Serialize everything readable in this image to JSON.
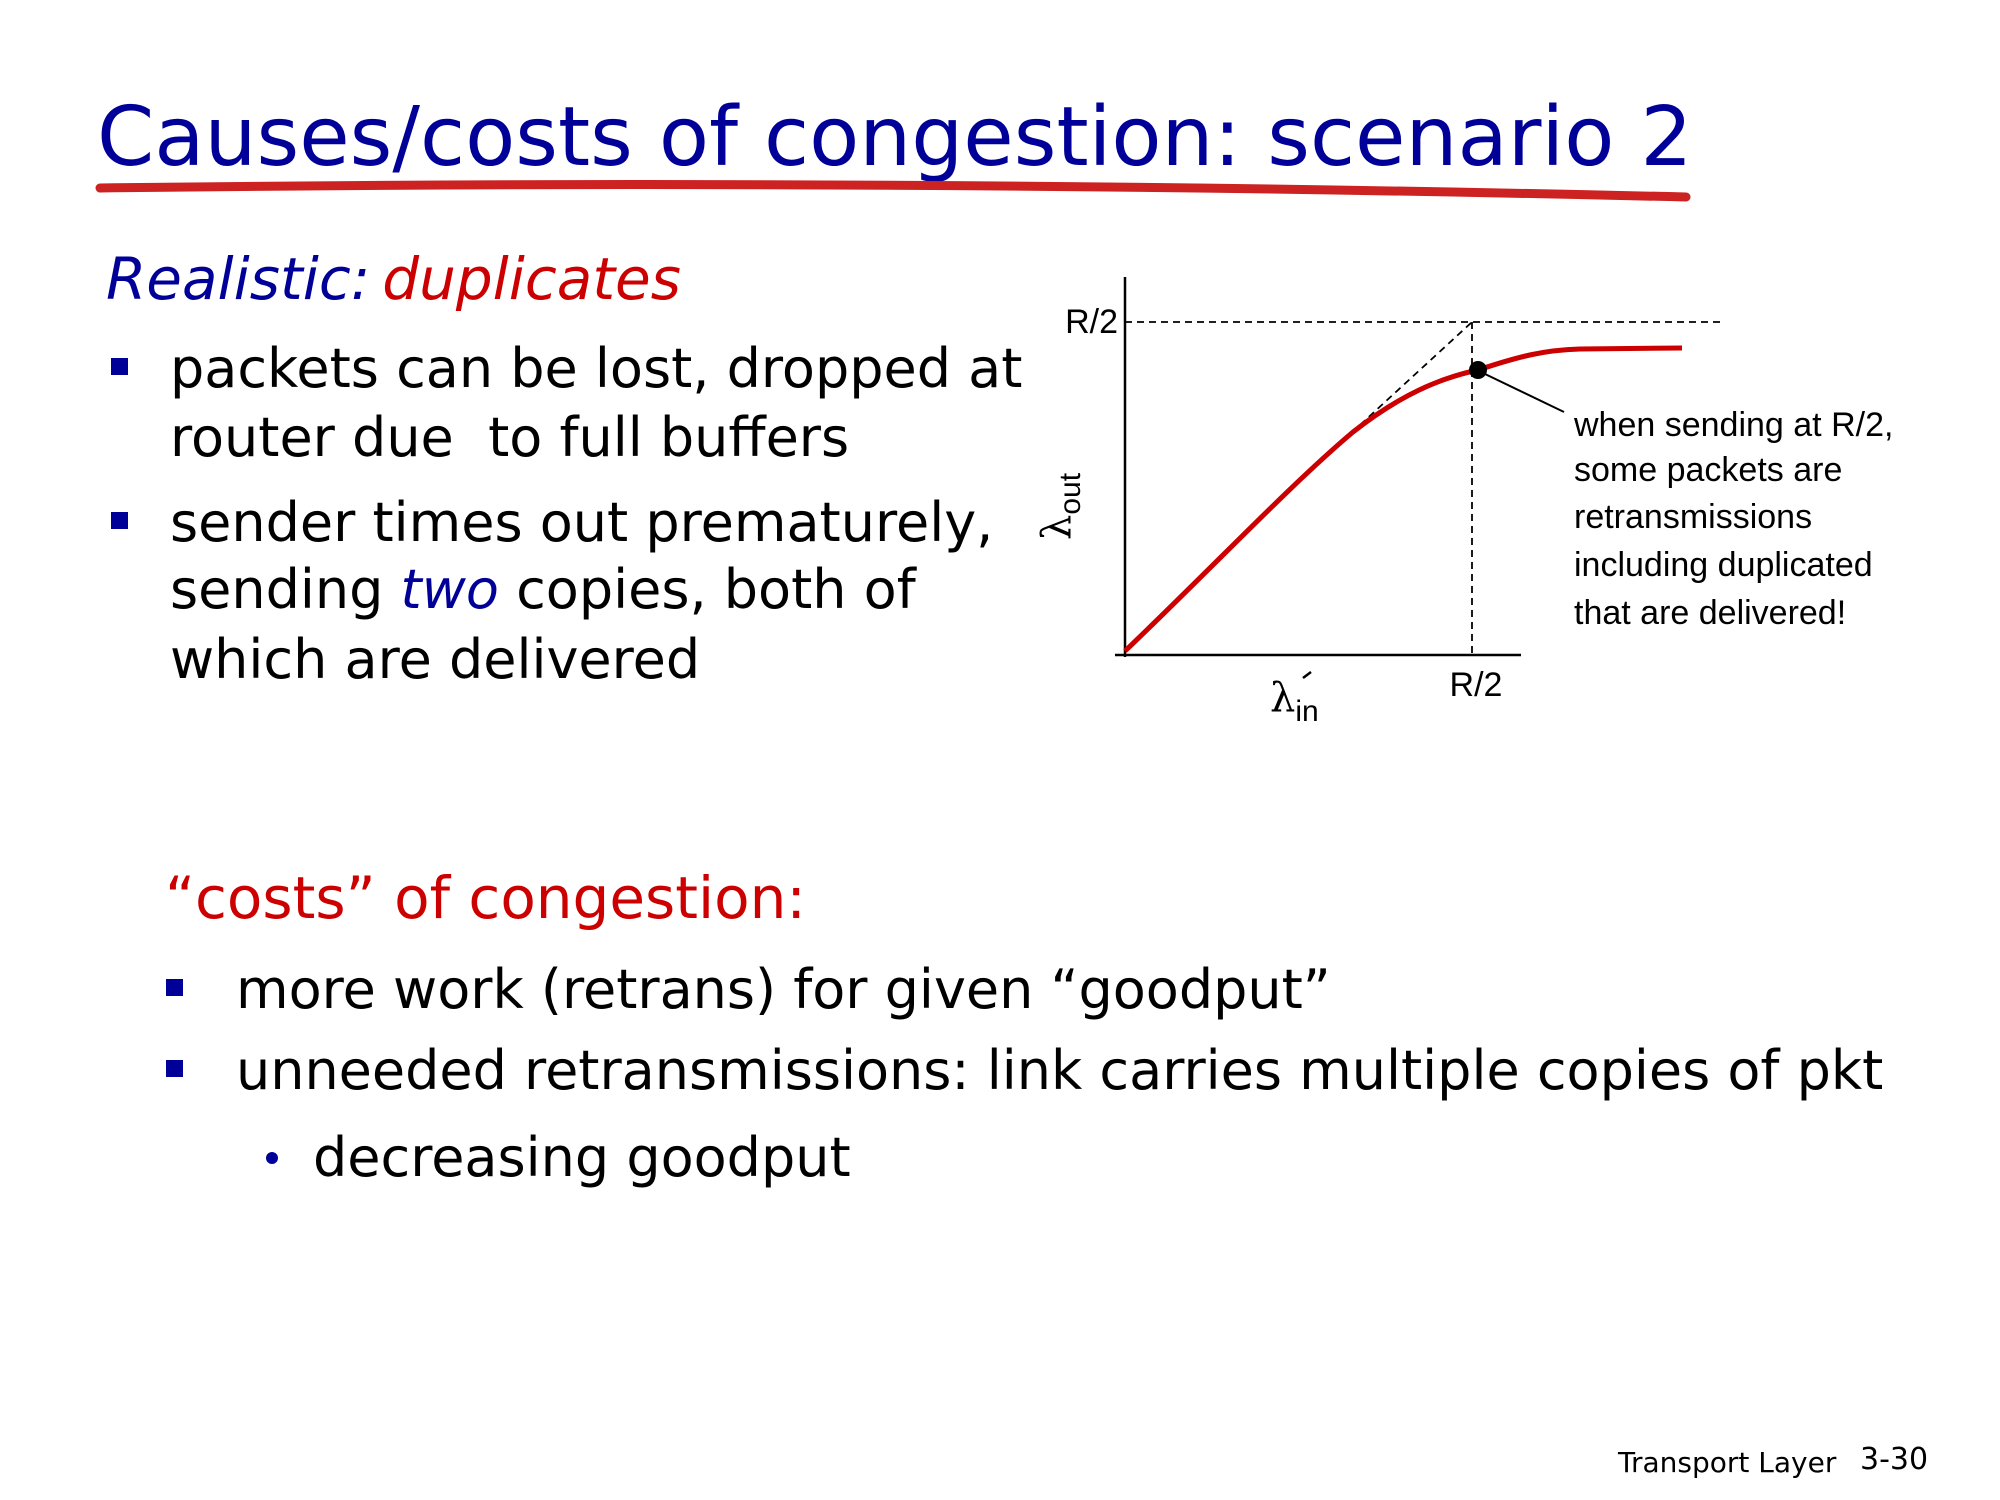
{
  "title": "Causes/costs of congestion: scenario 2",
  "subtitle": {
    "label": "Realistic:",
    "emphasis": "duplicates"
  },
  "bullets": [
    {
      "lines": [
        [
          "packets can be lost, dropped at"
        ],
        [
          "router due  to full buffers"
        ]
      ]
    },
    {
      "lines": [
        [
          "sender times out prematurely,"
        ],
        [
          "sending ",
          "two",
          " copies, both of"
        ],
        [
          "which are delivered"
        ]
      ]
    }
  ],
  "graph": {
    "y_label": "λ",
    "y_sub": "out",
    "x_label": "λ",
    "x_sub": "in",
    "y_tick": "R/2",
    "x_tick": "R/2",
    "annotation": [
      "when sending at R/2,",
      "some packets are",
      "retransmissions",
      "including duplicated",
      "that are delivered!"
    ]
  },
  "costs": {
    "heading": "“costs” of congestion:",
    "bullets": [
      "more work (retrans) for given “goodput”",
      "unneeded retransmissions: link carries multiple copies of pkt"
    ],
    "sub_bullets": [
      "decreasing goodput"
    ]
  },
  "footer": {
    "section": "Transport Layer",
    "page": "3-30"
  }
}
